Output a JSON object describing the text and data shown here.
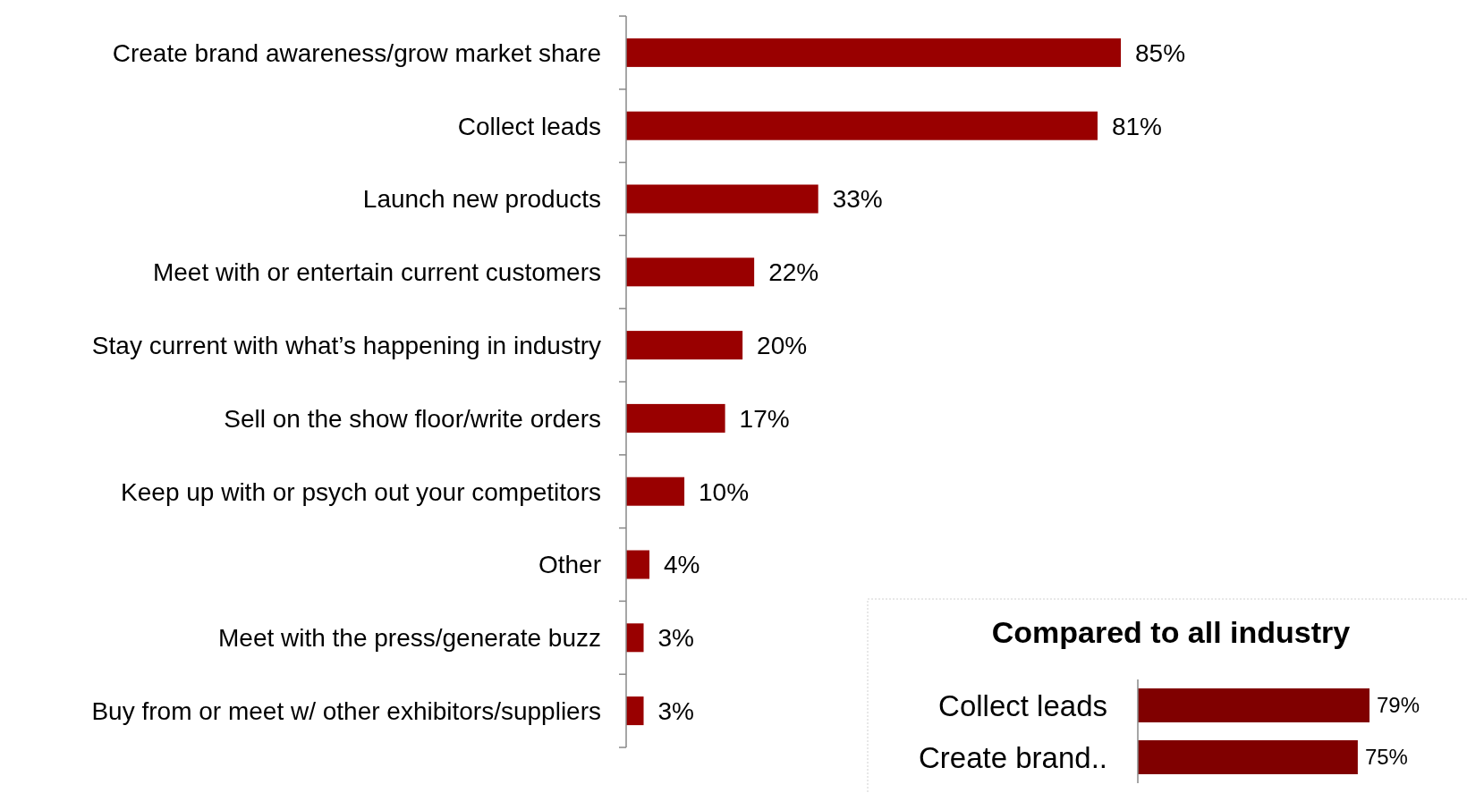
{
  "chart_data": [
    {
      "type": "bar",
      "orientation": "horizontal",
      "categories": [
        "Create brand awareness/grow market share",
        "Collect leads",
        "Launch new products",
        "Meet with or entertain current customers",
        "Stay current with what’s happening in industry",
        "Sell on the show floor/write orders",
        "Keep up with or psych out your competitors",
        "Other",
        "Meet with the press/generate buzz",
        "Buy from or meet w/ other exhibitors/suppliers"
      ],
      "values": [
        85,
        81,
        33,
        22,
        20,
        17,
        10,
        4,
        3,
        3
      ],
      "value_labels": [
        "85%",
        "81%",
        "33%",
        "22%",
        "20%",
        "17%",
        "10%",
        "4%",
        "3%",
        "3%"
      ],
      "color": "#990000"
    },
    {
      "type": "bar",
      "orientation": "horizontal",
      "title": "Compared to all industry",
      "categories": [
        "Collect leads",
        "Create brand.."
      ],
      "values": [
        79,
        75
      ],
      "value_labels": [
        "79%",
        "75%"
      ],
      "color": "#800000"
    }
  ]
}
